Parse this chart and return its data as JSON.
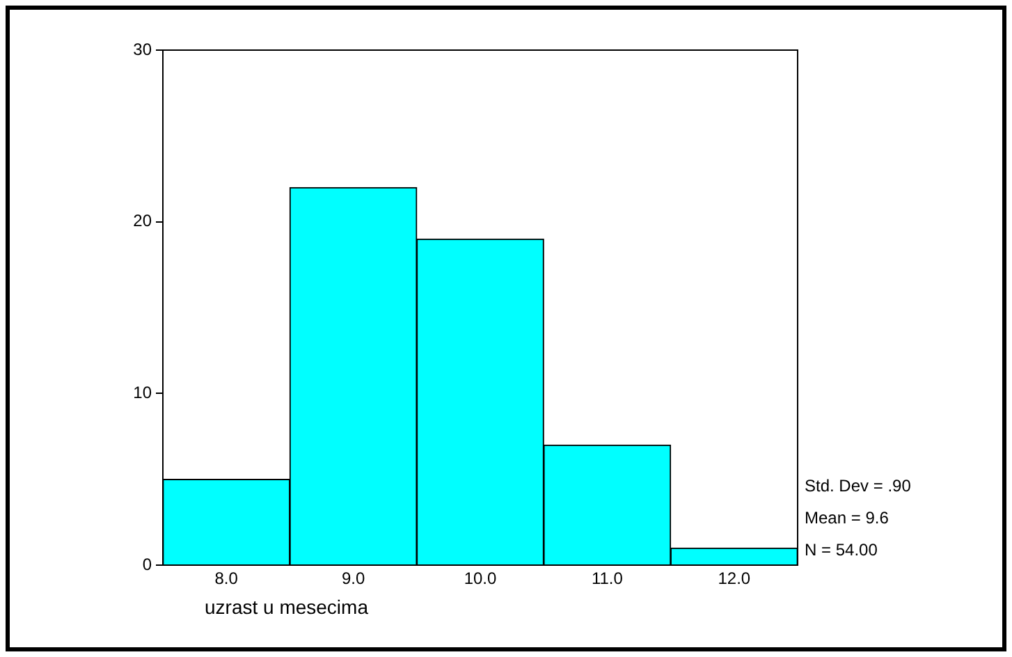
{
  "chart_data": {
    "type": "histogram",
    "xlabel": "uzrast u mesecima",
    "bins": [
      7.5,
      8.5,
      9.5,
      10.5,
      11.5,
      12.5
    ],
    "values": [
      5,
      22,
      19,
      7,
      1
    ],
    "color": "#00ffff",
    "xlim": [
      7.5,
      12.5
    ],
    "xticks": [
      {
        "value": 8,
        "label": "8.0"
      },
      {
        "value": 9,
        "label": "9.0"
      },
      {
        "value": 10,
        "label": "10.0"
      },
      {
        "value": 11,
        "label": "11.0"
      },
      {
        "value": 12,
        "label": "12.0"
      }
    ],
    "ylim": [
      0,
      30
    ],
    "yticks": [
      0,
      10,
      20,
      30
    ],
    "grid": false,
    "legend": false,
    "annotations": [
      "Std. Dev = .90",
      "Mean = 9.6",
      "N = 54.00"
    ]
  }
}
